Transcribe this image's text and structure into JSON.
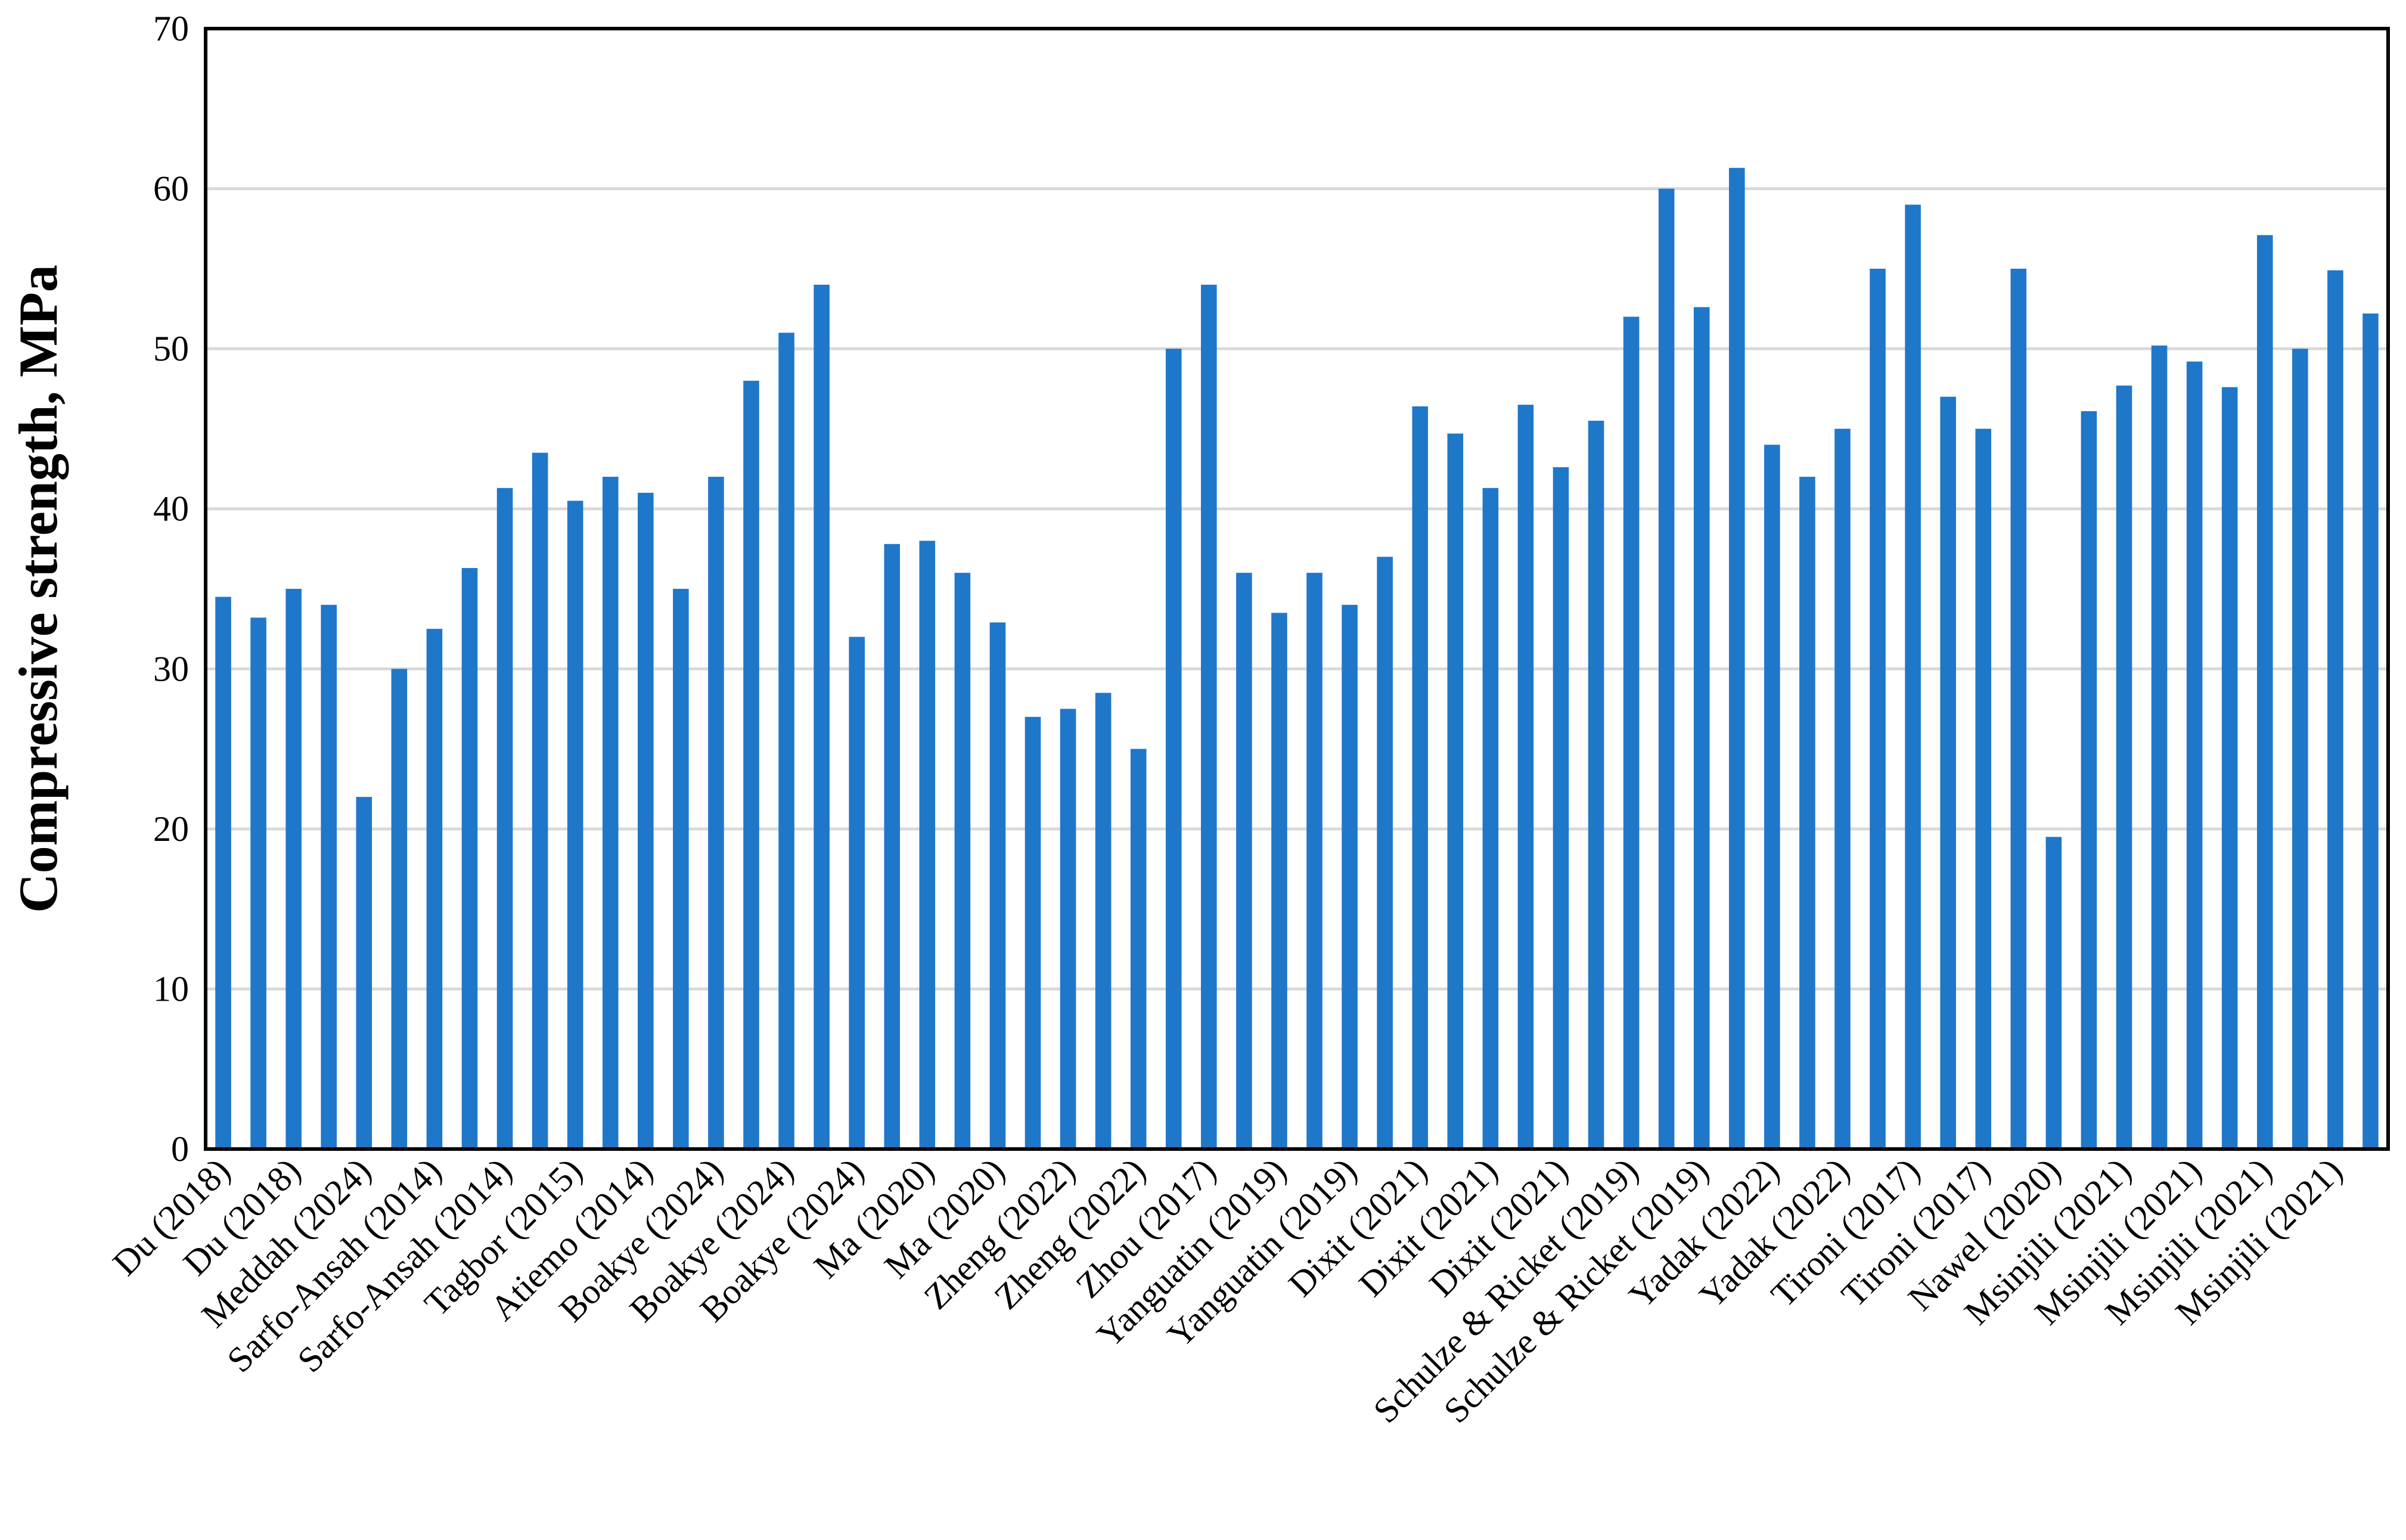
{
  "chart_data": {
    "type": "bar",
    "title": "",
    "xlabel": "",
    "ylabel": "Compressive strength, MPa",
    "ylim": [
      0,
      70
    ],
    "yticks": [
      0,
      10,
      20,
      30,
      40,
      50,
      60,
      70
    ],
    "grid": true,
    "legend": "none",
    "bar_color": "#1f77c9",
    "x_tick_labels": [
      "Du (2018)",
      "Du (2018)",
      "Meddah (2024)",
      "Sarfo-Ansah (2014)",
      "Sarfo-Ansah (2014)",
      "Tagbor (2015)",
      "Atiemo (2014)",
      "Boakye (2024)",
      "Boakye (2024)",
      "Boakye (2024)",
      "Ma (2020)",
      "Ma (2020)",
      "Zheng (2022)",
      "Zheng (2022)",
      "Zhou (2017)",
      "Yanguatin (2019)",
      "Yanguatin (2019)",
      "Dixit (2021)",
      "Dixit (2021)",
      "Dixit (2021)",
      "Schulze & Ricket (2019)",
      "Schulze & Ricket (2019)",
      "Yadak (2022)",
      "Yadak (2022)",
      "Tironi (2017)",
      "Tironi (2017)",
      "Nawel (2020)",
      "Msinjili (2021)",
      "Msinjili (2021)",
      "Msinjili (2021)",
      "Msinjili (2021)"
    ],
    "values": [
      34.5,
      33.2,
      35.0,
      34.0,
      22.0,
      30.0,
      32.5,
      36.3,
      41.3,
      43.5,
      40.5,
      42.0,
      41.0,
      35.0,
      42.0,
      48.0,
      51.0,
      54.0,
      32.0,
      37.8,
      38.0,
      36.0,
      32.9,
      27.0,
      27.5,
      28.5,
      25.0,
      50.0,
      54.0,
      36.0,
      33.5,
      36.0,
      34.0,
      37.0,
      46.4,
      44.7,
      41.3,
      46.5,
      42.6,
      45.5,
      52.0,
      60.0,
      52.6,
      61.3,
      44.0,
      42.0,
      45.0,
      55.0,
      59.0,
      47.0,
      45.0,
      55.0,
      19.5,
      46.1,
      47.7,
      50.2,
      49.2,
      47.6,
      57.1,
      50.0,
      54.9,
      52.2
    ]
  }
}
